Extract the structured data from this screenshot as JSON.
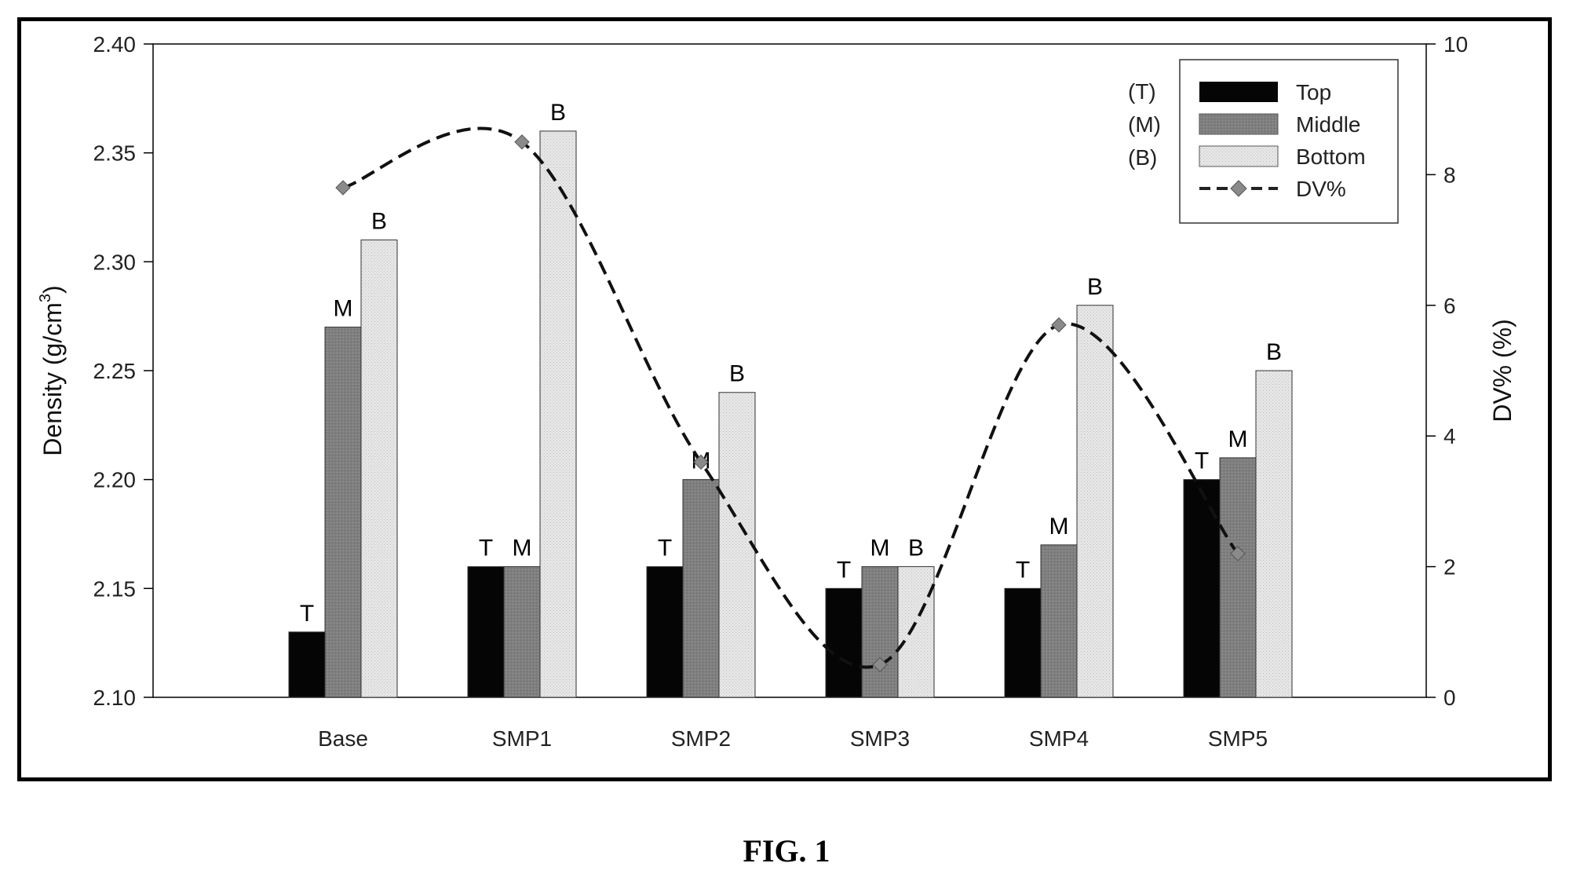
{
  "chart_data": {
    "type": "bar",
    "categories": [
      "Base",
      "SMP1",
      "SMP2",
      "SMP3",
      "SMP4",
      "SMP5"
    ],
    "series": [
      {
        "name": "Top",
        "code": "(T)",
        "letter": "T",
        "color": "#050505",
        "values": [
          2.13,
          2.16,
          2.16,
          2.15,
          2.15,
          2.2
        ]
      },
      {
        "name": "Middle",
        "code": "(M)",
        "letter": "M",
        "color": "#7f7f7f",
        "values": [
          2.27,
          2.16,
          2.2,
          2.16,
          2.17,
          2.21
        ]
      },
      {
        "name": "Bottom",
        "code": "(B)",
        "letter": "B",
        "color": "#dcdcdc",
        "values": [
          2.31,
          2.36,
          2.24,
          2.16,
          2.28,
          2.25
        ]
      }
    ],
    "line_series": {
      "name": "DV%",
      "type": "line",
      "style": "dashed",
      "marker": "diamond",
      "axis": "right",
      "color": "#666666",
      "values": [
        7.8,
        8.5,
        3.6,
        0.5,
        5.7,
        2.2
      ]
    },
    "ylabel": "Density (g/cm",
    "ylabel_superscript": "3",
    "ylabel_close": ")",
    "ylim": [
      2.1,
      2.4
    ],
    "yticks": [
      "2.10",
      "2.15",
      "2.20",
      "2.25",
      "2.30",
      "2.35",
      "2.40"
    ],
    "y2label": "DV% (%)",
    "y2lim": [
      0,
      10
    ],
    "y2ticks": [
      "0",
      "2",
      "4",
      "6",
      "8",
      "10"
    ],
    "legend_position": "top-right",
    "grid": false
  },
  "figure_caption": "FIG. 1"
}
